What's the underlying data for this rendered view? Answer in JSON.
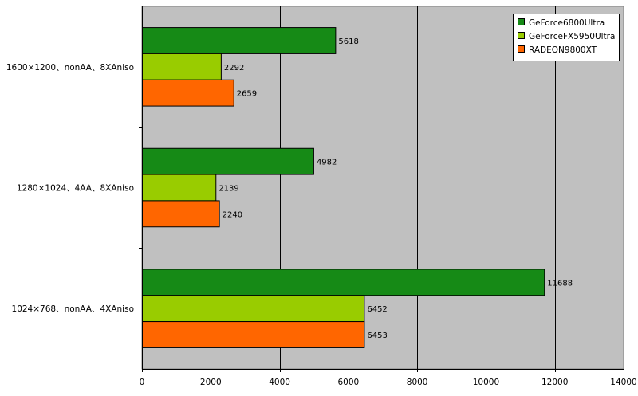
{
  "chart_data": {
    "type": "bar",
    "orientation": "horizontal",
    "categories": [
      "1600×1200、nonAA、8XAniso",
      "1280×1024、4AA、8XAniso",
      "1024×768、nonAA、4XAniso"
    ],
    "series": [
      {
        "name": "GeForce6800Ultra",
        "color": "#168a16",
        "values": [
          5618,
          4982,
          11688
        ]
      },
      {
        "name": "GeForceFX5950Ultra",
        "color": "#99cc00",
        "values": [
          2292,
          2139,
          6452
        ]
      },
      {
        "name": "RADEON9800XT",
        "color": "#ff6600",
        "values": [
          2659,
          2240,
          6453
        ]
      }
    ],
    "xlim": [
      0,
      14000
    ],
    "x_ticks": [
      0,
      2000,
      4000,
      6000,
      8000,
      10000,
      12000,
      14000
    ],
    "grid": true,
    "plot_background": "#c0c0c0",
    "legend_position": "top-right",
    "data_labels": true
  }
}
